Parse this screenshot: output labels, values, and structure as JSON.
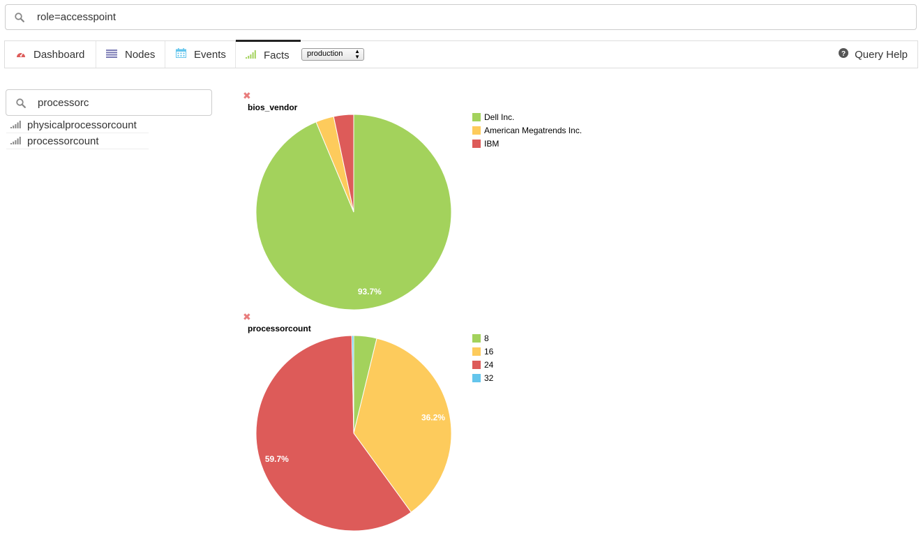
{
  "query": {
    "value": "role=accesspoint"
  },
  "nav": {
    "dashboard": "Dashboard",
    "nodes": "Nodes",
    "events": "Events",
    "facts": "Facts",
    "environment": "production",
    "query_help": "Query Help"
  },
  "facts_panel": {
    "search_value": "processorc",
    "items": [
      "physicalprocessorcount",
      "processorcount"
    ]
  },
  "colors": {
    "green": "#a3d25c",
    "yellow": "#fdcb5c",
    "red": "#dd5b59",
    "blue": "#64c5ec"
  },
  "chart_data": [
    {
      "type": "pie",
      "title": "bios_vendor",
      "categories": [
        "Dell Inc.",
        "American Megatrends Inc.",
        "IBM"
      ],
      "values": [
        93.7,
        3.0,
        3.3
      ],
      "colors": [
        "#a3d25c",
        "#fdcb5c",
        "#dd5b59"
      ],
      "data_labels": [
        "93.7%",
        "",
        ""
      ],
      "legend": "right"
    },
    {
      "type": "pie",
      "title": "processorcount",
      "categories": [
        "8",
        "16",
        "24",
        "32"
      ],
      "values": [
        3.8,
        36.2,
        59.7,
        0.3
      ],
      "colors": [
        "#a3d25c",
        "#fdcb5c",
        "#dd5b59",
        "#64c5ec"
      ],
      "data_labels": [
        "",
        "36.2%",
        "59.7%",
        ""
      ],
      "legend": "right"
    }
  ]
}
